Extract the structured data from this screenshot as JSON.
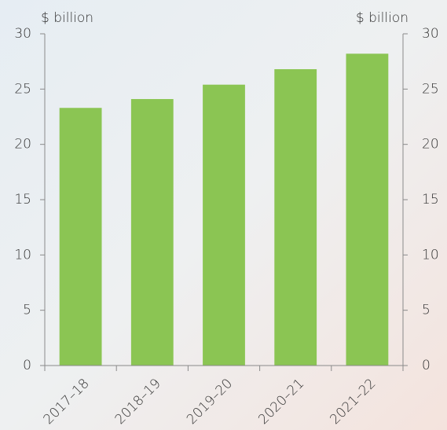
{
  "chart_data": {
    "type": "bar",
    "categories": [
      "2017–18",
      "2018–19",
      "2019–20",
      "2020–21",
      "2021–22"
    ],
    "values": [
      23.3,
      24.1,
      25.4,
      26.8,
      28.2
    ],
    "color": "#8bc553",
    "ylabel": "$ billion",
    "y2label": "$ billion",
    "ylim": [
      0,
      30
    ],
    "yticks": [
      0,
      5,
      10,
      15,
      20,
      25,
      30
    ],
    "y2lim": [
      0,
      30
    ],
    "y2ticks": [
      0,
      5,
      10,
      15,
      20,
      25,
      30
    ],
    "grid": false
  }
}
